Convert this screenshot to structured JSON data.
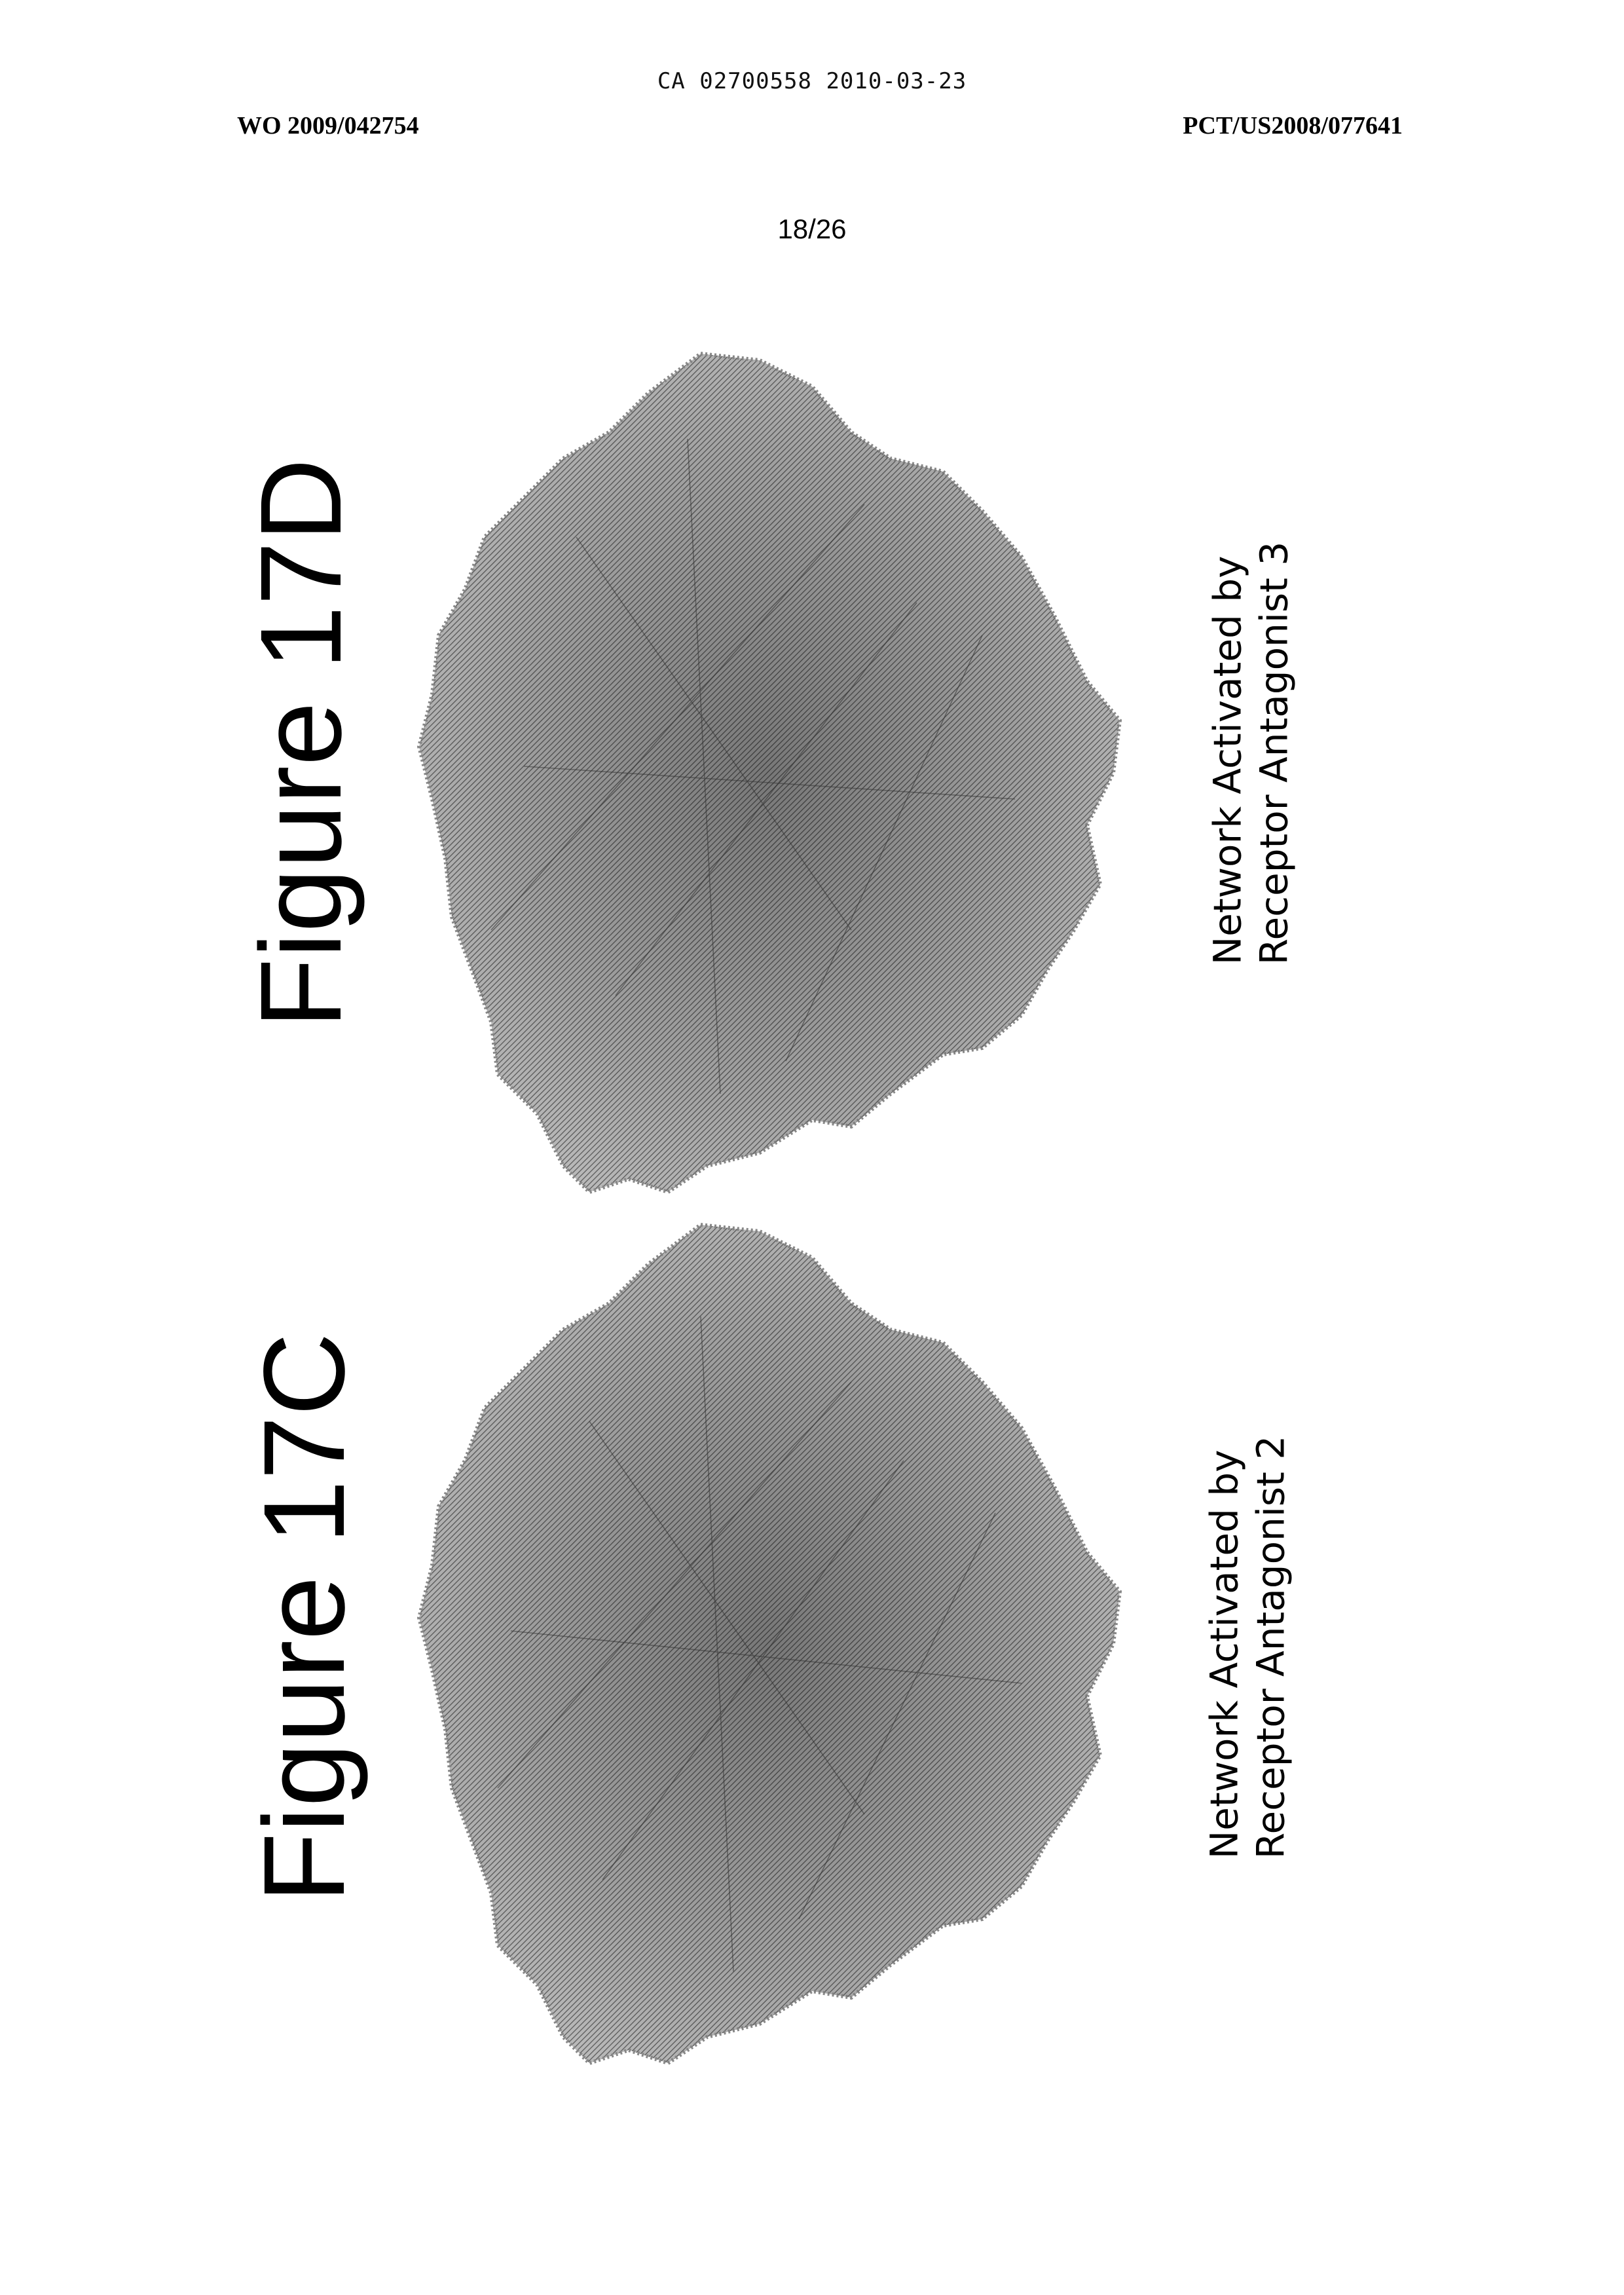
{
  "header": {
    "ca_ref": "CA 02700558 2010-03-23",
    "publication_number": "WO 2009/042754",
    "application_number": "PCT/US2008/077641",
    "page": "18/26"
  },
  "figures": [
    {
      "id": "17D",
      "title": "Figure 17D",
      "caption_line1": "Network Activated by",
      "caption_line2": "Receptor Antagonist 3"
    },
    {
      "id": "17C",
      "title": "Figure 17C",
      "caption_line1": "Network Activated by",
      "caption_line2": "Receptor Antagonist 2"
    }
  ]
}
